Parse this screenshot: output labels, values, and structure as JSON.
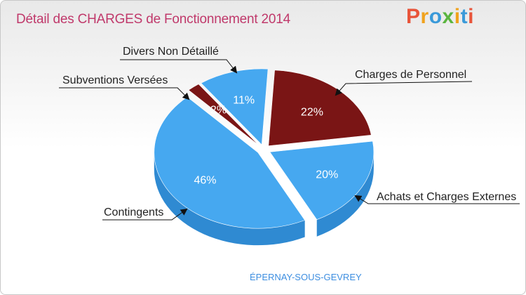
{
  "header": {
    "title": "Détail des CHARGES de Fonctionnement 2014",
    "logo": "Proxiti",
    "logo_colors": [
      "#e8543a",
      "#f0a21c",
      "#3a9ad9",
      "#5bb53f",
      "#f0a21c",
      "#3a9ad9",
      "#e8543a"
    ]
  },
  "footer": {
    "commune": "ÉPERNAY-SOUS-GEVREY"
  },
  "chart_data": {
    "type": "pie",
    "title": "Détail des CHARGES de Fonctionnement 2014",
    "subtitle": "ÉPERNAY-SOUS-GEVREY",
    "unit": "%",
    "slices": [
      {
        "name": "Charges de Personnel",
        "value": 22,
        "label": "22%",
        "color": "#7a1515",
        "side": "#5a0d0d"
      },
      {
        "name": "Achats et Charges Externes",
        "value": 20,
        "label": "20%",
        "color": "#46a8f0",
        "side": "#2f8ad2"
      },
      {
        "name": "Contingents",
        "value": 46,
        "label": "46%",
        "color": "#46a8f0",
        "side": "#2f8ad2"
      },
      {
        "name": "Subventions Versées",
        "value": 2,
        "label": "2%",
        "color": "#7a1515",
        "side": "#5a0d0d"
      },
      {
        "name": "Divers Non Détaillé",
        "value": 11,
        "label": "11%",
        "color": "#46a8f0",
        "side": "#2f8ad2"
      }
    ]
  }
}
